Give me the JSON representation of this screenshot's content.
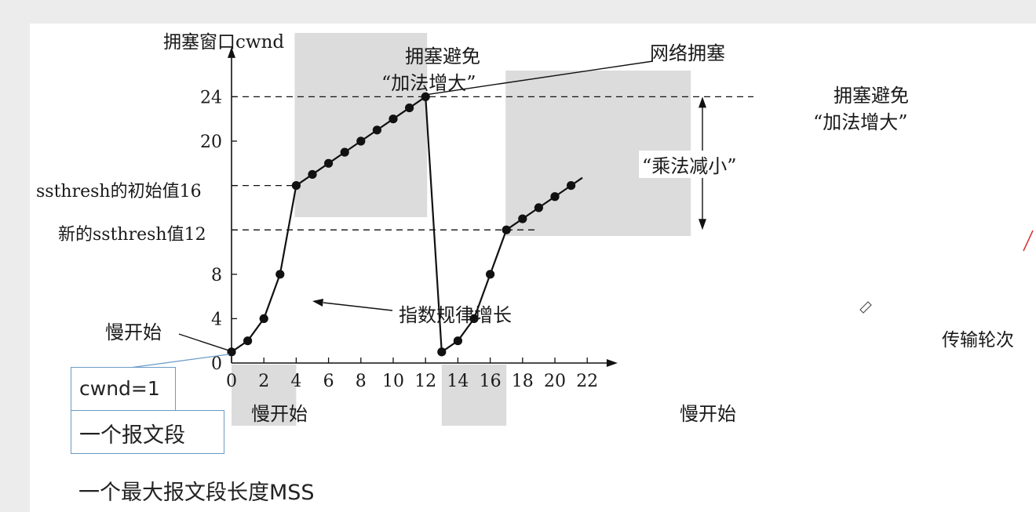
{
  "chart_data": {
    "type": "line",
    "ylabel": "拥塞窗口cwnd",
    "xlabel": "传输轮次",
    "x_ticks": [
      0,
      2,
      4,
      6,
      8,
      10,
      12,
      14,
      16,
      18,
      20,
      22
    ],
    "y_ticks": [
      0,
      4,
      8,
      12,
      16,
      20,
      24
    ],
    "xlim": [
      0,
      23.2
    ],
    "ylim": [
      0,
      27.5
    ],
    "grid": false,
    "points": [
      {
        "x": 0,
        "y": 1
      },
      {
        "x": 1,
        "y": 2
      },
      {
        "x": 2,
        "y": 4
      },
      {
        "x": 3,
        "y": 8
      },
      {
        "x": 4,
        "y": 16
      },
      {
        "x": 5,
        "y": 17
      },
      {
        "x": 6,
        "y": 18
      },
      {
        "x": 7,
        "y": 19
      },
      {
        "x": 8,
        "y": 20
      },
      {
        "x": 9,
        "y": 21
      },
      {
        "x": 10,
        "y": 22
      },
      {
        "x": 11,
        "y": 23
      },
      {
        "x": 12,
        "y": 24
      },
      {
        "x": 13,
        "y": 1
      },
      {
        "x": 14,
        "y": 2
      },
      {
        "x": 15,
        "y": 4
      },
      {
        "x": 16,
        "y": 8
      },
      {
        "x": 17,
        "y": 12
      },
      {
        "x": 18,
        "y": 13
      },
      {
        "x": 19,
        "y": 14
      },
      {
        "x": 20,
        "y": 15
      },
      {
        "x": 21,
        "y": 16
      }
    ],
    "line_end": {
      "x": 21.7,
      "y": 16.7
    },
    "threshold_labels": {
      "initial": "ssthresh的初始值16",
      "new": "新的ssthresh值12"
    },
    "thresholds": {
      "initial": 16,
      "new": 12,
      "peak": 24
    },
    "regions": [
      {
        "label": "慢开始",
        "x_from": 0,
        "x_to": 4
      },
      {
        "label": "慢开始",
        "x_from": 13,
        "x_to": 17
      }
    ],
    "avoid_regions": [
      {
        "line1": "拥塞避免",
        "line2": "“加法增大”"
      },
      {
        "line1": "拥塞避免",
        "line2": "“加法增大”"
      }
    ],
    "annotations": {
      "congestion": "网络拥塞",
      "multiplicative": "“乘法减小”",
      "exponential": "指数规律增长",
      "slow_start_point": "慢开始"
    }
  },
  "notes": {
    "cwnd": "cwnd=1",
    "segment": "一个报文段",
    "mss": "一个最大报文段长度MSS"
  },
  "colors": {
    "shade": "#dcdcdc",
    "line": "#111111",
    "note_border": "#6b9bc7",
    "pen_mark": "#d9302c"
  }
}
